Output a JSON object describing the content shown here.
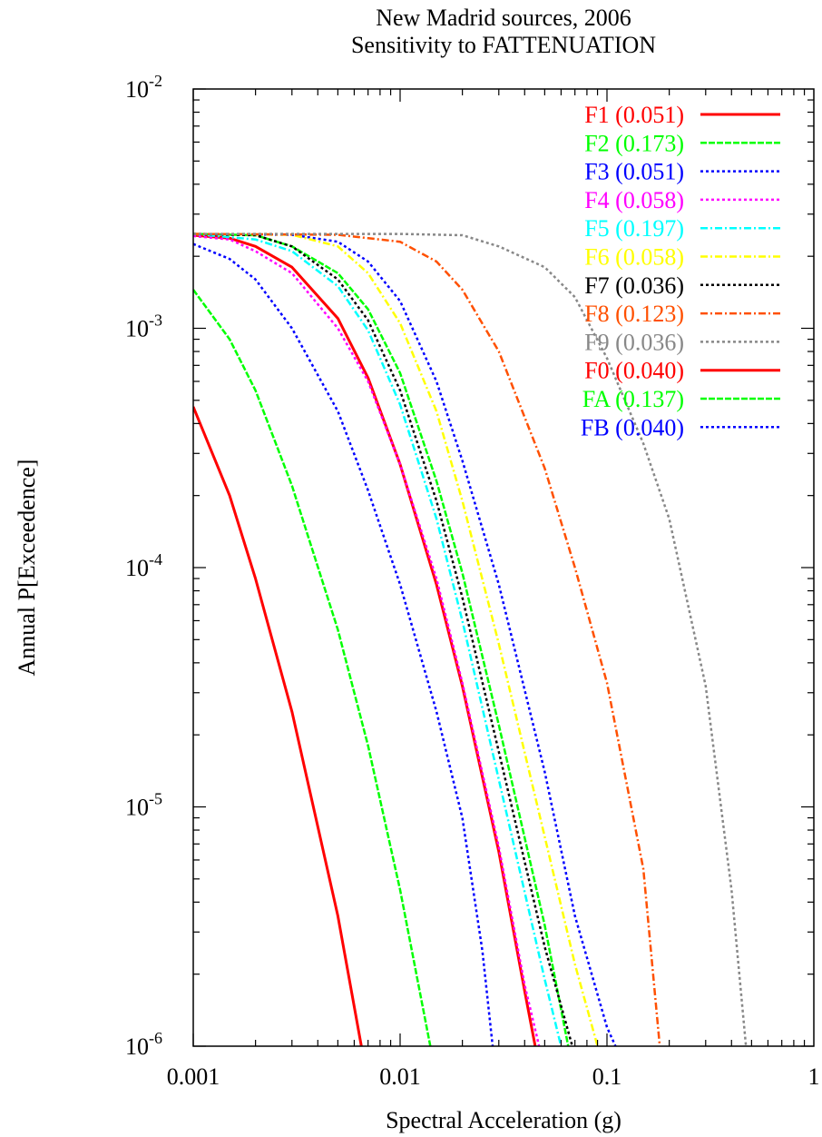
{
  "chart_data": {
    "type": "line",
    "title": "New Madrid sources, 2006",
    "subtitle": "Sensitivity to FATTENUATION",
    "xlabel": "Spectral Acceleration (g)",
    "ylabel": "Annual P[Exceedence]",
    "xscale": "log",
    "yscale": "log",
    "xlim": [
      0.001,
      1
    ],
    "ylim": [
      1e-06,
      0.01
    ],
    "x_ticks": [
      {
        "value": 0.001,
        "label": "0.001"
      },
      {
        "value": 0.01,
        "label": "0.01"
      },
      {
        "value": 0.1,
        "label": "0.1"
      },
      {
        "value": 1,
        "label": "1"
      }
    ],
    "y_ticks": [
      {
        "value": 0.01,
        "base": "10",
        "exp": "-2"
      },
      {
        "value": 0.001,
        "base": "10",
        "exp": "-3"
      },
      {
        "value": 0.0001,
        "base": "10",
        "exp": "-4"
      },
      {
        "value": 1e-05,
        "base": "10",
        "exp": "-5"
      },
      {
        "value": 1e-06,
        "base": "10",
        "exp": "-6"
      }
    ],
    "grid": false,
    "legend_position": "top-right",
    "series": [
      {
        "name": "F1 (0.051)",
        "color": "#ff0000",
        "dash": "solid",
        "points": [
          [
            0.001,
            0.00245
          ],
          [
            0.0015,
            0.00238
          ],
          [
            0.002,
            0.0022
          ],
          [
            0.003,
            0.0018
          ],
          [
            0.005,
            0.0011
          ],
          [
            0.007,
            0.00062
          ],
          [
            0.01,
            0.00027
          ],
          [
            0.015,
            8.5e-05
          ],
          [
            0.02,
            3.2e-05
          ],
          [
            0.03,
            6.5e-06
          ],
          [
            0.04,
            1.7e-06
          ],
          [
            0.045,
            1e-06
          ]
        ]
      },
      {
        "name": "F2 (0.173)",
        "color": "#00ff00",
        "dash": "dash",
        "points": [
          [
            0.001,
            0.00248
          ],
          [
            0.002,
            0.00245
          ],
          [
            0.003,
            0.0022
          ],
          [
            0.005,
            0.0017
          ],
          [
            0.007,
            0.0012
          ],
          [
            0.01,
            0.00065
          ],
          [
            0.015,
            0.00023
          ],
          [
            0.02,
            9.5e-05
          ],
          [
            0.03,
            2.2e-05
          ],
          [
            0.05,
            3.2e-06
          ],
          [
            0.065,
            1e-06
          ]
        ]
      },
      {
        "name": "F3 (0.051)",
        "color": "#0000ff",
        "dash": "dot",
        "points": [
          [
            0.001,
            0.00248
          ],
          [
            0.003,
            0.00246
          ],
          [
            0.005,
            0.0023
          ],
          [
            0.007,
            0.0019
          ],
          [
            0.01,
            0.0013
          ],
          [
            0.015,
            0.0006
          ],
          [
            0.02,
            0.00028
          ],
          [
            0.03,
            8.5e-05
          ],
          [
            0.05,
            1.4e-05
          ],
          [
            0.07,
            3.5e-06
          ],
          [
            0.1,
            1.2e-06
          ],
          [
            0.11,
            1e-06
          ]
        ]
      },
      {
        "name": "F4 (0.058)",
        "color": "#ff00ff",
        "dash": "dot",
        "points": [
          [
            0.001,
            0.00243
          ],
          [
            0.0015,
            0.00235
          ],
          [
            0.002,
            0.0021
          ],
          [
            0.003,
            0.0017
          ],
          [
            0.005,
            0.001
          ],
          [
            0.007,
            0.0006
          ],
          [
            0.01,
            0.00027
          ],
          [
            0.015,
            9e-05
          ],
          [
            0.02,
            3.3e-05
          ],
          [
            0.03,
            6.8e-06
          ],
          [
            0.04,
            1.8e-06
          ],
          [
            0.047,
            1e-06
          ]
        ]
      },
      {
        "name": "F5 (0.197)",
        "color": "#00ffff",
        "dash": "dashdot",
        "points": [
          [
            0.001,
            0.00248
          ],
          [
            0.002,
            0.00235
          ],
          [
            0.003,
            0.0021
          ],
          [
            0.005,
            0.0015
          ],
          [
            0.007,
            0.00098
          ],
          [
            0.01,
            0.00048
          ],
          [
            0.015,
            0.00016
          ],
          [
            0.02,
            6e-05
          ],
          [
            0.03,
            1.3e-05
          ],
          [
            0.05,
            1.9e-06
          ],
          [
            0.06,
            1e-06
          ]
        ]
      },
      {
        "name": "F6 (0.058)",
        "color": "#ffff00",
        "dash": "dashdot",
        "points": [
          [
            0.001,
            0.00248
          ],
          [
            0.003,
            0.00246
          ],
          [
            0.005,
            0.0022
          ],
          [
            0.007,
            0.0017
          ],
          [
            0.01,
            0.00105
          ],
          [
            0.015,
            0.00045
          ],
          [
            0.02,
            0.00019
          ],
          [
            0.03,
            4.8e-05
          ],
          [
            0.05,
            7.5e-06
          ],
          [
            0.07,
            2.2e-06
          ],
          [
            0.09,
            1e-06
          ]
        ]
      },
      {
        "name": "F7 (0.036)",
        "color": "#000000",
        "dash": "dot",
        "points": [
          [
            0.001,
            0.00248
          ],
          [
            0.002,
            0.00245
          ],
          [
            0.003,
            0.0022
          ],
          [
            0.005,
            0.0016
          ],
          [
            0.007,
            0.00108
          ],
          [
            0.01,
            0.00055
          ],
          [
            0.015,
            0.00019
          ],
          [
            0.02,
            7.5e-05
          ],
          [
            0.03,
            1.7e-05
          ],
          [
            0.05,
            2.6e-06
          ],
          [
            0.068,
            1e-06
          ]
        ]
      },
      {
        "name": "F8 (0.123)",
        "color": "#ff5000",
        "dash": "dashdot",
        "points": [
          [
            0.001,
            0.00248
          ],
          [
            0.005,
            0.00246
          ],
          [
            0.01,
            0.0023
          ],
          [
            0.015,
            0.0019
          ],
          [
            0.02,
            0.00145
          ],
          [
            0.03,
            0.0008
          ],
          [
            0.05,
            0.00026
          ],
          [
            0.07,
            0.0001
          ],
          [
            0.1,
            3.3e-05
          ],
          [
            0.15,
            5.5e-06
          ],
          [
            0.18,
            1e-06
          ]
        ]
      },
      {
        "name": "F9 (0.036)",
        "color": "#888888",
        "dash": "dot",
        "points": [
          [
            0.001,
            0.00248
          ],
          [
            0.01,
            0.00248
          ],
          [
            0.02,
            0.00245
          ],
          [
            0.03,
            0.0022
          ],
          [
            0.05,
            0.0018
          ],
          [
            0.07,
            0.00135
          ],
          [
            0.1,
            0.00075
          ],
          [
            0.15,
            0.00033
          ],
          [
            0.2,
            0.00016
          ],
          [
            0.3,
            3.2e-05
          ],
          [
            0.4,
            4.5e-06
          ],
          [
            0.47,
            1e-06
          ]
        ]
      },
      {
        "name": "F0 (0.040)",
        "color": "#ff0000",
        "dash": "solid",
        "points": [
          [
            0.001,
            0.00047
          ],
          [
            0.0015,
            0.0002
          ],
          [
            0.002,
            9e-05
          ],
          [
            0.003,
            2.5e-05
          ],
          [
            0.005,
            3.5e-06
          ],
          [
            0.0065,
            1e-06
          ]
        ]
      },
      {
        "name": "FA (0.137)",
        "color": "#00ff00",
        "dash": "dash",
        "points": [
          [
            0.001,
            0.00145
          ],
          [
            0.0015,
            0.0009
          ],
          [
            0.002,
            0.00055
          ],
          [
            0.003,
            0.00022
          ],
          [
            0.005,
            5.5e-05
          ],
          [
            0.007,
            1.8e-05
          ],
          [
            0.01,
            4.5e-06
          ],
          [
            0.014,
            1e-06
          ]
        ]
      },
      {
        "name": "FB (0.040)",
        "color": "#0000ff",
        "dash": "dot",
        "points": [
          [
            0.001,
            0.00225
          ],
          [
            0.0015,
            0.00195
          ],
          [
            0.002,
            0.0016
          ],
          [
            0.003,
            0.001
          ],
          [
            0.005,
            0.00045
          ],
          [
            0.007,
            0.00021
          ],
          [
            0.01,
            8.5e-05
          ],
          [
            0.015,
            2.5e-05
          ],
          [
            0.02,
            9e-06
          ],
          [
            0.025,
            2.5e-06
          ],
          [
            0.028,
            1e-06
          ]
        ]
      }
    ]
  }
}
